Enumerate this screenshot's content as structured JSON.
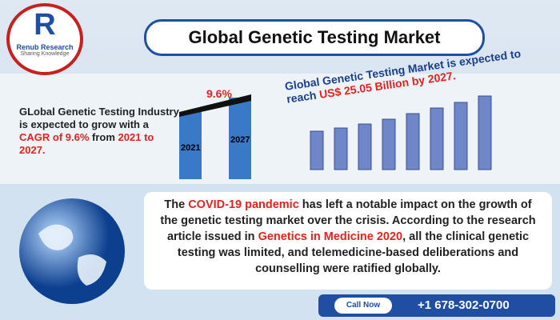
{
  "logo": {
    "letter": "R",
    "name": "Renub Research",
    "tagline": "Sharing Knowledge"
  },
  "header": {
    "title": "Global Genetic Testing Market"
  },
  "cagr_panel": {
    "text": [
      "GLobal Genetic Testing Industry is expected to grow with a ",
      "CAGR of 9.6%",
      " from ",
      "2021 to 2027."
    ],
    "rate": "9.6%",
    "start_year": "2021",
    "end_year": "2027"
  },
  "forecast_panel": {
    "text": [
      "Global Genetic Testing Market is expected to reach ",
      "US$ 25.05 Billion",
      " by 2027."
    ]
  },
  "covid_panel": {
    "text": [
      "The ",
      "COVID-19 pandemic",
      " has left a notable impact on the growth of the genetic testing market over the crisis. According to the research article issued in ",
      "Genetics in Medicine 2020",
      ", all the clinical genetic testing was limited, and telemedicine-based deliberations and counselling were ratified globally."
    ]
  },
  "contact": {
    "button": "Call Now",
    "phone": "+1 678-302-0700"
  }
}
